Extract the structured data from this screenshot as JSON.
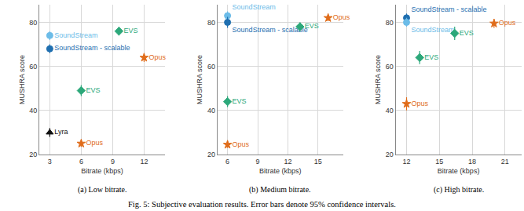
{
  "caption": "Fig. 5: Subjective evaluation results. Error bars denote 95% confidence intervals.",
  "chart_data": [
    {
      "type": "scatter",
      "title": "(a) Low bitrate.",
      "x_label": "Bitrate (kbps)",
      "y_label": "MUSHRA score",
      "xlim": [
        2,
        14
      ],
      "xticks": [
        3,
        6,
        9,
        12
      ],
      "ylim": [
        20,
        88
      ],
      "yticks": [
        20,
        40,
        60,
        80
      ],
      "grid": true,
      "series": [
        {
          "name": "SoundStream",
          "color": "#6cbce8",
          "marker": "circle",
          "x": [
            3
          ],
          "values": [
            74
          ],
          "error": [
            2
          ]
        },
        {
          "name": "SoundStream - scalable",
          "color": "#1f6fb0",
          "marker": "circle",
          "x": [
            3
          ],
          "values": [
            68
          ],
          "error": [
            2
          ]
        },
        {
          "name": "Lyra",
          "color": "#111111",
          "marker": "triangle",
          "x": [
            3
          ],
          "values": [
            30
          ],
          "error": [
            2
          ]
        },
        {
          "name": "EVS",
          "color": "#2ca87a",
          "marker": "diamond",
          "x": [
            6,
            9.6
          ],
          "values": [
            49,
            76
          ],
          "error": [
            2.5,
            2
          ]
        },
        {
          "name": "Opus",
          "color": "#e06c1a",
          "marker": "star",
          "x": [
            6,
            12
          ],
          "values": [
            25,
            64
          ],
          "error": [
            1.5,
            2
          ]
        }
      ]
    },
    {
      "type": "scatter",
      "title": "(b) Medium bitrate.",
      "x_label": "Bitrate (kbps)",
      "y_label": "MUSHRA score",
      "xlim": [
        5,
        17.5
      ],
      "xticks": [
        6,
        9,
        12,
        15
      ],
      "ylim": [
        20,
        88
      ],
      "yticks": [
        20,
        40,
        60,
        80
      ],
      "grid": true,
      "series": [
        {
          "name": "SoundStream",
          "color": "#6cbce8",
          "marker": "circle",
          "x": [
            6
          ],
          "values": [
            83
          ],
          "error": [
            2
          ]
        },
        {
          "name": "SoundStream - scalable",
          "color": "#1f6fb0",
          "marker": "circle",
          "x": [
            6
          ],
          "values": [
            80
          ],
          "error": [
            2.5
          ]
        },
        {
          "name": "EVS",
          "color": "#2ca87a",
          "marker": "diamond",
          "x": [
            6,
            13.2
          ],
          "values": [
            44,
            78
          ],
          "error": [
            2.5,
            2
          ]
        },
        {
          "name": "Opus",
          "color": "#e06c1a",
          "marker": "star",
          "x": [
            6,
            16
          ],
          "values": [
            24.5,
            82
          ],
          "error": [
            1.5,
            1.5
          ]
        }
      ]
    },
    {
      "type": "scatter",
      "title": "(c) High bitrate.",
      "x_label": "Bitrate (kbps)",
      "y_label": "MUSHRA score",
      "xlim": [
        11,
        22.5
      ],
      "xticks": [
        12,
        15,
        18,
        21
      ],
      "ylim": [
        20,
        88
      ],
      "yticks": [
        20,
        40,
        60,
        80
      ],
      "grid": true,
      "series": [
        {
          "name": "SoundStream - scalable",
          "color": "#1f6fb0",
          "marker": "circle",
          "x": [
            12
          ],
          "values": [
            82
          ],
          "error": [
            2
          ]
        },
        {
          "name": "SoundStream",
          "color": "#6cbce8",
          "marker": "circle",
          "x": [
            12
          ],
          "values": [
            80
          ],
          "error": [
            2
          ]
        },
        {
          "name": "EVS",
          "color": "#2ca87a",
          "marker": "diamond",
          "x": [
            13.2,
            16.4
          ],
          "values": [
            64,
            75
          ],
          "error": [
            3,
            3
          ]
        },
        {
          "name": "Opus",
          "color": "#e06c1a",
          "marker": "star",
          "x": [
            12,
            20
          ],
          "values": [
            43,
            79.5
          ],
          "error": [
            3,
            2
          ]
        }
      ]
    }
  ]
}
